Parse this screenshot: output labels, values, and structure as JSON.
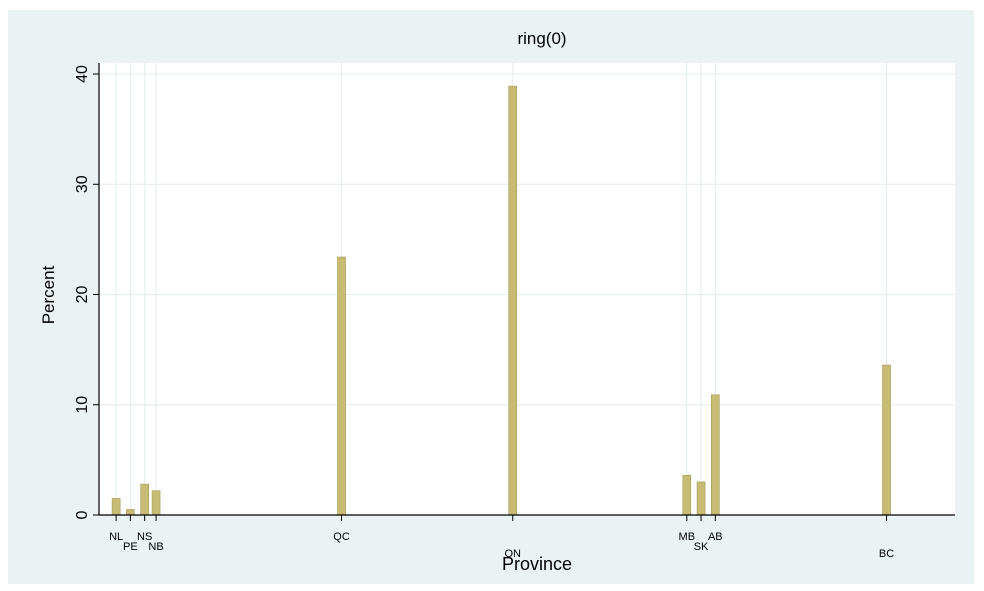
{
  "chart_data": {
    "type": "bar",
    "title": "ring(0)",
    "xlabel": "Province",
    "ylabel": "Percent",
    "ylim": [
      0,
      41
    ],
    "yticks": [
      0,
      10,
      20,
      30,
      40
    ],
    "xlim": [
      0,
      60
    ],
    "grid": true,
    "bars": [
      {
        "category": "NL",
        "x": 1.2,
        "value": 1.5
      },
      {
        "category": "PE",
        "x": 2.2,
        "value": 0.5
      },
      {
        "category": "NS",
        "x": 3.2,
        "value": 2.8
      },
      {
        "category": "NB",
        "x": 4.0,
        "value": 2.2
      },
      {
        "category": "QC",
        "x": 17.0,
        "value": 23.4
      },
      {
        "category": "ON",
        "x": 29.0,
        "value": 38.9
      },
      {
        "category": "MB",
        "x": 41.2,
        "value": 3.6
      },
      {
        "category": "SK",
        "x": 42.2,
        "value": 3.0
      },
      {
        "category": "AB",
        "x": 43.2,
        "value": 10.9
      },
      {
        "category": "BC",
        "x": 55.2,
        "value": 13.6
      }
    ],
    "xtick_labels": [
      {
        "label": "NL",
        "x": 1.2,
        "row": 1
      },
      {
        "label": "PE",
        "x": 2.2,
        "row": 2
      },
      {
        "label": "NS",
        "x": 3.2,
        "row": 1
      },
      {
        "label": "NB",
        "x": 4.0,
        "row": 2
      },
      {
        "label": "QC",
        "x": 17.0,
        "row": 1
      },
      {
        "label": "ON",
        "x": 29.0,
        "row": 3
      },
      {
        "label": "MB",
        "x": 41.2,
        "row": 1
      },
      {
        "label": "SK",
        "x": 42.2,
        "row": 2
      },
      {
        "label": "AB",
        "x": 43.2,
        "row": 1
      },
      {
        "label": "BC",
        "x": 55.2,
        "row": 3
      }
    ],
    "bar_color": "#c8bc74",
    "bar_edge_color": "#a39a56",
    "plot_background": "#ffffff",
    "outer_background": "#eaf2f3",
    "grid_color": "#e3ecee"
  }
}
